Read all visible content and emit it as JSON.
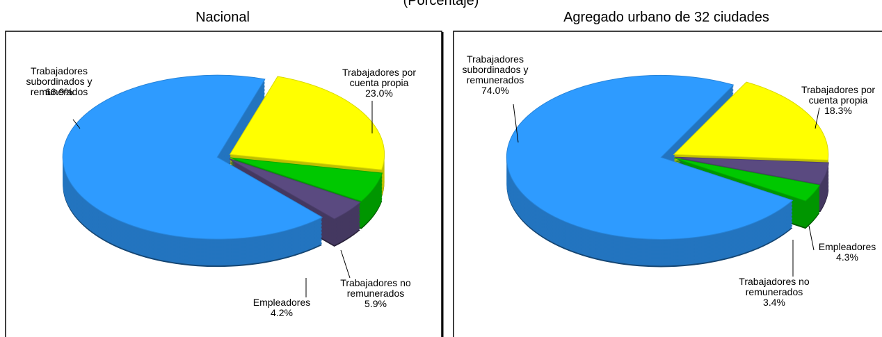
{
  "header": {
    "title": "(Porcentaje)"
  },
  "chart_data": [
    {
      "type": "pie",
      "title": "Nacional",
      "categories": [
        "Trabajadores por cuenta propia",
        "Trabajadores no remunerados",
        "Empleadores",
        "Trabajadores subordinados y remunerados"
      ],
      "values": [
        23.0,
        5.9,
        4.2,
        66.9
      ],
      "value_labels": [
        "23.0%",
        "5.9%",
        "4.2%",
        "66.9%"
      ],
      "colors": [
        "#ffff00",
        "#00c800",
        "#5a4a80",
        "#2e9bff"
      ]
    },
    {
      "type": "pie",
      "title": "Agregado urbano de 32 ciudades",
      "categories": [
        "Trabajadores por cuenta propia",
        "Empleadores",
        "Trabajadores no remunerados",
        "Trabajadores subordinados y remunerados"
      ],
      "values": [
        18.3,
        4.3,
        3.4,
        74.0
      ],
      "value_labels": [
        "18.3%",
        "4.3%",
        "3.4%",
        "74.0%"
      ],
      "colors": [
        "#ffff00",
        "#5a4a80",
        "#00c800",
        "#2e9bff"
      ]
    }
  ]
}
